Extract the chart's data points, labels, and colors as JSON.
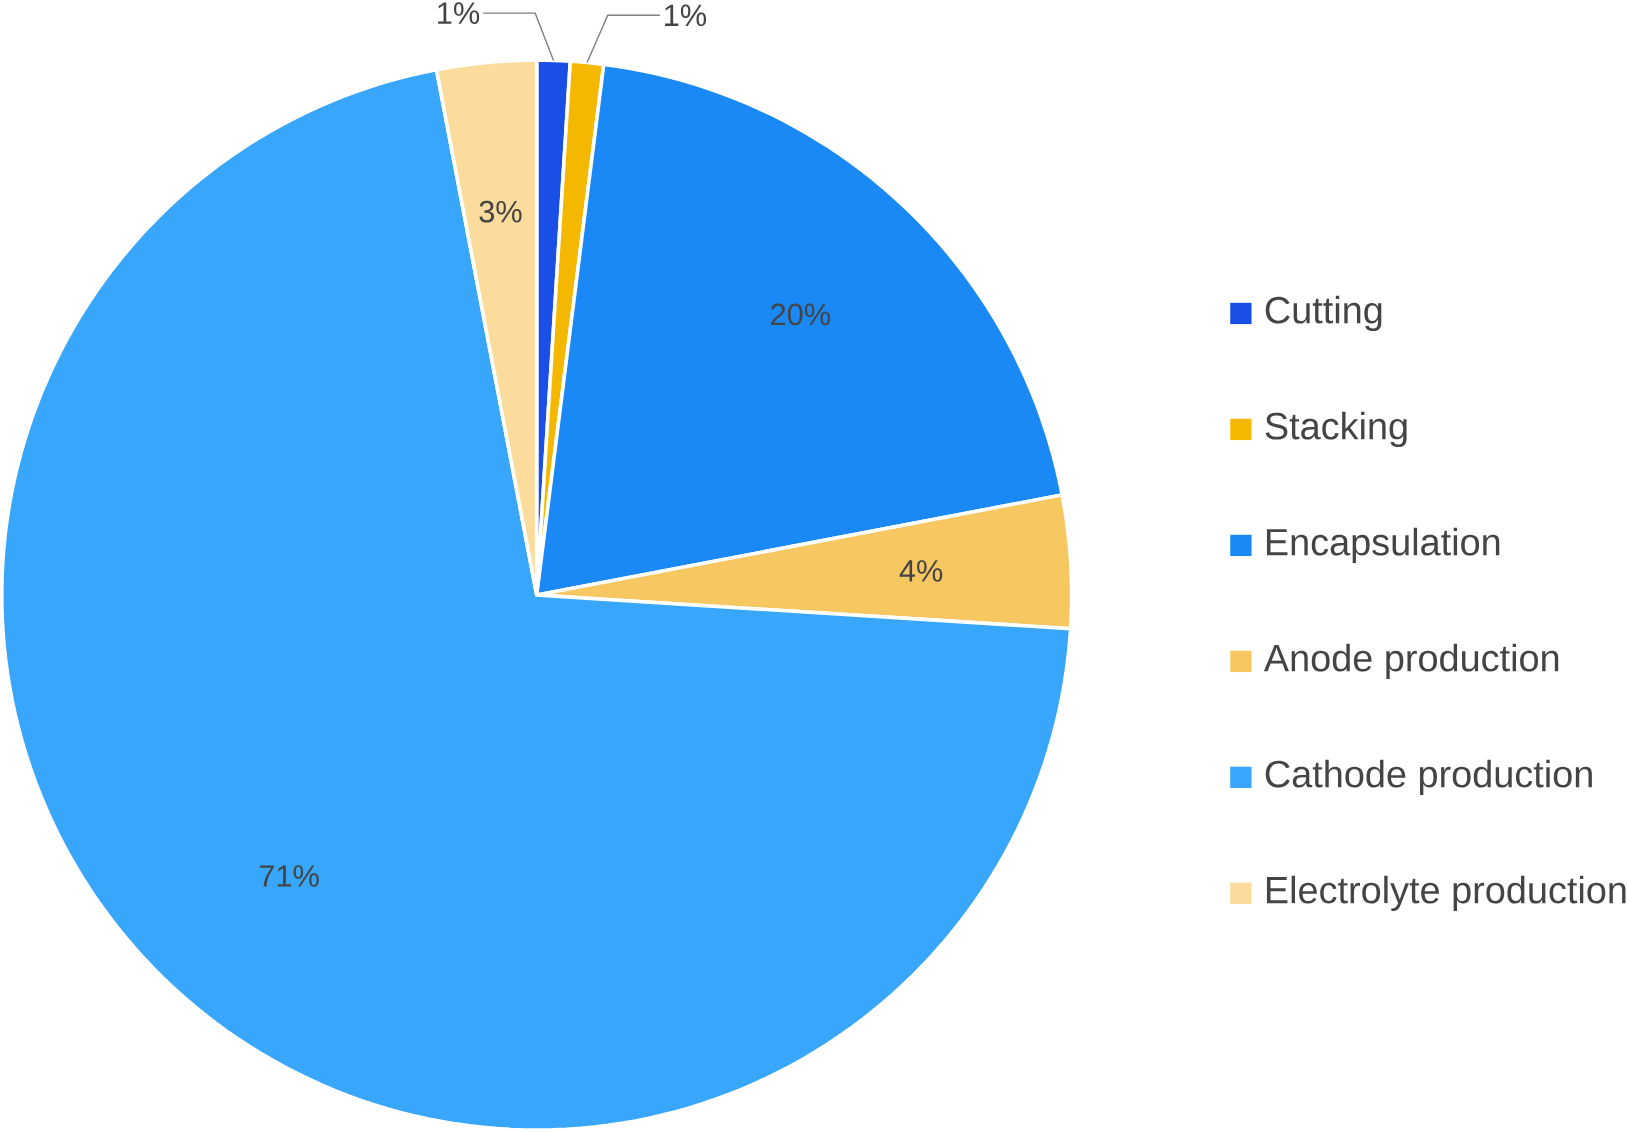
{
  "chart_data": {
    "type": "pie",
    "categories": [
      "Cutting",
      "Stacking",
      "Encapsulation",
      "Anode production",
      "Cathode production",
      "Electrolyte production"
    ],
    "values": [
      1,
      1,
      20,
      4,
      71,
      3
    ],
    "value_labels": [
      "1%",
      "1%",
      "20%",
      "4%",
      "71%",
      "3%"
    ],
    "colors": [
      "#1a4fe6",
      "#f5b800",
      "#1a88f5",
      "#f7c862",
      "#37a6fb",
      "#fbdc9c"
    ],
    "legend": "right"
  }
}
